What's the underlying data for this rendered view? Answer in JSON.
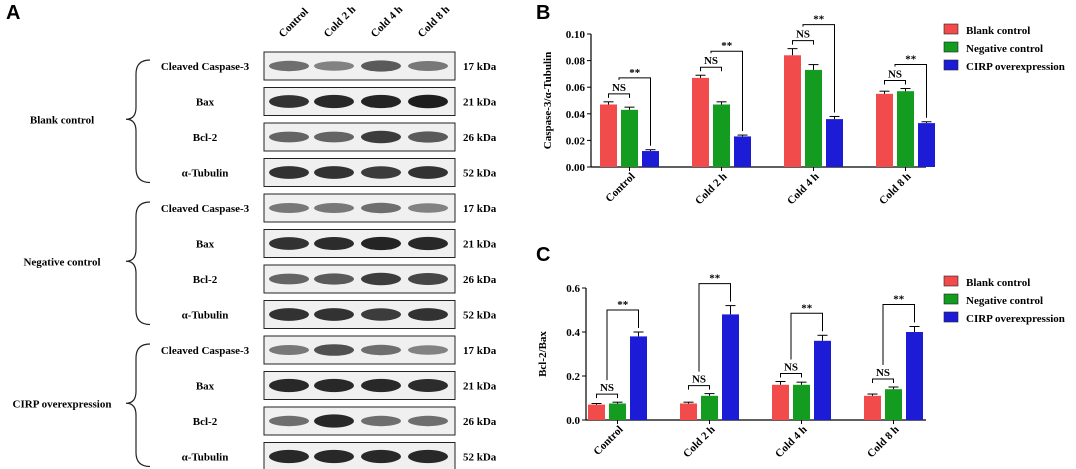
{
  "panels": {
    "a": "A",
    "b": "B",
    "c": "C"
  },
  "blot": {
    "lanes": [
      "Control",
      "Cold 2 h",
      "Cold 4 h",
      "Cold 8 h"
    ],
    "groups": [
      {
        "name": "Blank control",
        "rows": [
          {
            "protein": "Cleaved Caspase-3",
            "kda": "17 kDa",
            "intensity": [
              0.55,
              0.45,
              0.65,
              0.5
            ]
          },
          {
            "protein": "Bax",
            "kda": "21 kDa",
            "intensity": [
              0.85,
              0.9,
              0.92,
              0.95
            ]
          },
          {
            "protein": "Bcl-2",
            "kda": "26 kDa",
            "intensity": [
              0.6,
              0.6,
              0.8,
              0.65
            ]
          },
          {
            "protein": "α-Tubulin",
            "kda": "52 kDa",
            "intensity": [
              0.85,
              0.85,
              0.8,
              0.85
            ]
          }
        ]
      },
      {
        "name": "Negative control",
        "rows": [
          {
            "protein": "Cleaved Caspase-3",
            "kda": "17 kDa",
            "intensity": [
              0.5,
              0.5,
              0.55,
              0.45
            ]
          },
          {
            "protein": "Bax",
            "kda": "21 kDa",
            "intensity": [
              0.85,
              0.88,
              0.92,
              0.9
            ]
          },
          {
            "protein": "Bcl-2",
            "kda": "26 kDa",
            "intensity": [
              0.6,
              0.65,
              0.8,
              0.75
            ]
          },
          {
            "protein": "α-Tubulin",
            "kda": "52 kDa",
            "intensity": [
              0.85,
              0.85,
              0.8,
              0.85
            ]
          }
        ]
      },
      {
        "name": "CIRP overexpression",
        "rows": [
          {
            "protein": "Cleaved Caspase-3",
            "kda": "17 kDa",
            "intensity": [
              0.5,
              0.7,
              0.55,
              0.45
            ]
          },
          {
            "protein": "Bax",
            "kda": "21 kDa",
            "intensity": [
              0.9,
              0.9,
              0.9,
              0.88
            ]
          },
          {
            "protein": "Bcl-2",
            "kda": "26 kDa",
            "intensity": [
              0.55,
              0.9,
              0.55,
              0.55
            ]
          },
          {
            "protein": "α-Tubulin",
            "kda": "52 kDa",
            "intensity": [
              0.9,
              0.9,
              0.9,
              0.9
            ]
          }
        ]
      }
    ]
  },
  "chart_data": [
    {
      "type": "bar",
      "panel": "B",
      "categories": [
        "Control",
        "Cold 2 h",
        "Cold 4 h",
        "Cold 8 h"
      ],
      "ylabel": "Caspase-3/α-Tubulin",
      "ylim": [
        0,
        0.1
      ],
      "yticks": [
        "0.00",
        "0.02",
        "0.04",
        "0.06",
        "0.08",
        "0.10"
      ],
      "series": [
        {
          "name": "Blank control",
          "color": "#f24b4b",
          "values": [
            0.047,
            0.067,
            0.084,
            0.055
          ],
          "err": [
            0.002,
            0.002,
            0.005,
            0.002
          ]
        },
        {
          "name": "Negative control",
          "color": "#139c1f",
          "values": [
            0.043,
            0.047,
            0.073,
            0.057
          ],
          "err": [
            0.002,
            0.002,
            0.004,
            0.002
          ]
        },
        {
          "name": "CIRP overexpression",
          "color": "#1c1cd6",
          "values": [
            0.012,
            0.023,
            0.036,
            0.033
          ],
          "err": [
            0.001,
            0.001,
            0.002,
            0.001
          ]
        }
      ],
      "annotations": [
        {
          "category": 0,
          "ns": "NS",
          "sig": "**"
        },
        {
          "category": 1,
          "ns": "NS",
          "sig": "**"
        },
        {
          "category": 2,
          "ns": "NS",
          "sig": "**"
        },
        {
          "category": 3,
          "ns": "NS",
          "sig": "**"
        }
      ],
      "legend": "right"
    },
    {
      "type": "bar",
      "panel": "C",
      "categories": [
        "Control",
        "Cold 2 h",
        "Cold 4 h",
        "Cold 8 h"
      ],
      "ylabel": "Bcl-2/Bax",
      "ylim": [
        0,
        0.6
      ],
      "yticks": [
        "0.0",
        "0.2",
        "0.4",
        "0.6"
      ],
      "series": [
        {
          "name": "Blank control",
          "color": "#f24b4b",
          "values": [
            0.07,
            0.075,
            0.16,
            0.11
          ],
          "err": [
            0.005,
            0.006,
            0.015,
            0.008
          ]
        },
        {
          "name": "Negative control",
          "color": "#139c1f",
          "values": [
            0.075,
            0.11,
            0.16,
            0.14
          ],
          "err": [
            0.006,
            0.01,
            0.012,
            0.01
          ]
        },
        {
          "name": "CIRP overexpression",
          "color": "#1c1cd6",
          "values": [
            0.38,
            0.48,
            0.36,
            0.4
          ],
          "err": [
            0.02,
            0.04,
            0.025,
            0.025
          ]
        }
      ],
      "annotations": [
        {
          "category": 0,
          "ns": "NS",
          "sig": "**"
        },
        {
          "category": 1,
          "ns": "NS",
          "sig": "**"
        },
        {
          "category": 2,
          "ns": "NS",
          "sig": "**"
        },
        {
          "category": 3,
          "ns": "NS",
          "sig": "**"
        }
      ],
      "legend": "right"
    }
  ]
}
